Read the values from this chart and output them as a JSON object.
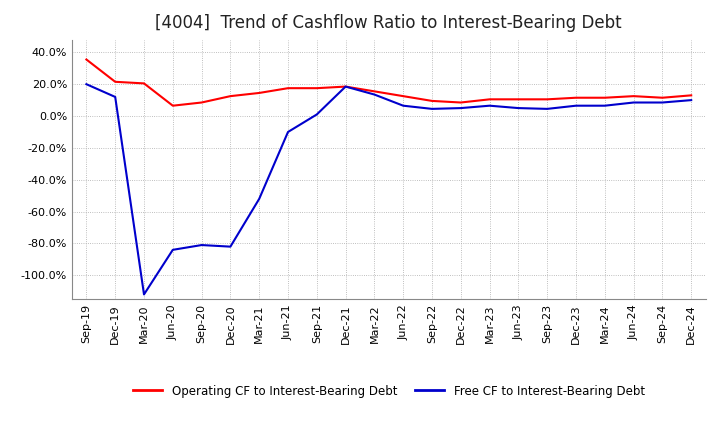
{
  "title": "[4004]  Trend of Cashflow Ratio to Interest-Bearing Debt",
  "title_fontsize": 12,
  "ylim": [
    -1.15,
    0.48
  ],
  "yticks": [
    0.4,
    0.2,
    0.0,
    -0.2,
    -0.4,
    -0.6,
    -0.8,
    -1.0
  ],
  "background_color": "#ffffff",
  "grid_color": "#aaaaaa",
  "x_labels": [
    "Sep-19",
    "Dec-19",
    "Mar-20",
    "Jun-20",
    "Sep-20",
    "Dec-20",
    "Mar-21",
    "Jun-21",
    "Sep-21",
    "Dec-21",
    "Mar-22",
    "Jun-22",
    "Sep-22",
    "Dec-22",
    "Mar-23",
    "Jun-23",
    "Sep-23",
    "Dec-23",
    "Mar-24",
    "Jun-24",
    "Sep-24",
    "Dec-24"
  ],
  "operating_cf": [
    0.355,
    0.215,
    0.205,
    0.065,
    0.085,
    0.125,
    0.145,
    0.175,
    0.175,
    0.185,
    0.155,
    0.125,
    0.095,
    0.085,
    0.105,
    0.105,
    0.105,
    0.115,
    0.115,
    0.125,
    0.115,
    0.13
  ],
  "free_cf": [
    0.2,
    0.12,
    -1.12,
    -0.84,
    -0.81,
    -0.82,
    -0.52,
    -0.1,
    0.01,
    0.185,
    0.135,
    0.065,
    0.045,
    0.05,
    0.065,
    0.05,
    0.045,
    0.065,
    0.065,
    0.085,
    0.085,
    0.1
  ],
  "operating_cf_color": "#ff0000",
  "free_cf_color": "#0000cc",
  "line_width": 1.5,
  "legend_labels": [
    "Operating CF to Interest-Bearing Debt",
    "Free CF to Interest-Bearing Debt"
  ]
}
